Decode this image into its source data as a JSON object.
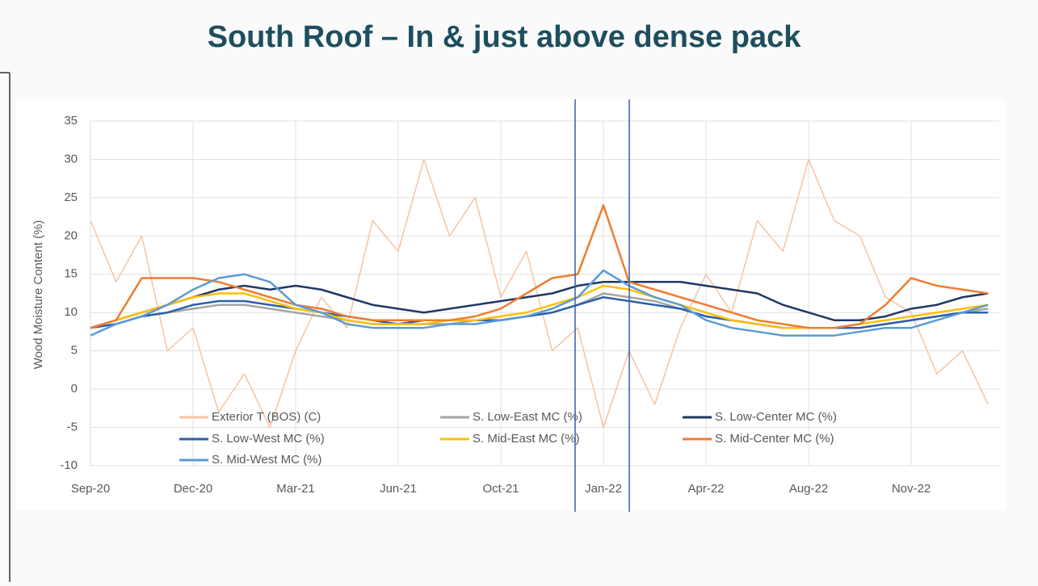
{
  "chart_data": {
    "type": "line",
    "title": "South Roof – In & just above dense pack",
    "y_label": "Wood Moisture Content (%)",
    "categories": [
      "Sep-20",
      null,
      null,
      null,
      "Dec-20",
      null,
      null,
      null,
      "Mar-21",
      null,
      null,
      null,
      "Jun-21",
      null,
      null,
      null,
      "Oct-21",
      null,
      null,
      null,
      "Jan-22",
      null,
      null,
      null,
      "Apr-22",
      null,
      null,
      null,
      "Aug-22",
      null,
      null,
      null,
      "Nov-22",
      null,
      null,
      null
    ],
    "ylim": [
      -10,
      35
    ],
    "yticks": [
      -10,
      -5,
      0,
      5,
      10,
      15,
      20,
      25,
      30,
      35
    ],
    "grid": true,
    "series": [
      {
        "name": "Exterior T (BOS) (C)",
        "color": "#f6c3a3",
        "values": [
          22,
          14,
          20,
          5,
          8,
          -3,
          2,
          -5,
          5,
          12,
          8,
          22,
          18,
          30,
          20,
          25,
          12,
          18,
          5,
          8,
          -5,
          5,
          -2,
          8,
          15,
          10,
          22,
          18,
          30,
          22,
          20,
          12,
          10,
          2,
          5,
          -2
        ]
      },
      {
        "name": "S. Low-East MC (%)",
        "color": "#a5a5a5",
        "values": [
          8,
          8.5,
          9.5,
          10,
          10.5,
          11,
          11,
          10.5,
          10,
          9.5,
          9,
          8.5,
          8.5,
          8.5,
          8.5,
          9,
          9,
          9.5,
          10,
          11,
          12.5,
          12,
          11.5,
          10.5,
          9.5,
          9,
          8.5,
          8,
          8,
          8,
          8,
          8.5,
          9,
          9.5,
          10,
          10.5
        ]
      },
      {
        "name": "S. Low-Center MC (%)",
        "color": "#1f3864",
        "values": [
          8,
          9,
          10,
          11,
          12,
          13,
          13.5,
          13,
          13.5,
          13,
          12,
          11,
          10.5,
          10,
          10.5,
          11,
          11.5,
          12,
          12.5,
          13.5,
          14,
          14,
          14,
          14,
          13.5,
          13,
          12.5,
          11,
          10,
          9,
          9,
          9.5,
          10.5,
          11,
          12,
          12.5
        ]
      },
      {
        "name": "S. Low-West MC (%)",
        "color": "#2e5fa8",
        "values": [
          8,
          8.5,
          9.5,
          10,
          11,
          11.5,
          11.5,
          11,
          10.5,
          10,
          9.5,
          9,
          8.5,
          9,
          9,
          9,
          9,
          9.5,
          10,
          11,
          12,
          11.5,
          11,
          10.5,
          9.5,
          9,
          8.5,
          8,
          8,
          8,
          8,
          8.5,
          9,
          9.5,
          10,
          10
        ]
      },
      {
        "name": "S. Mid-East MC (%)",
        "color": "#ffc000",
        "values": [
          8,
          9,
          10,
          11,
          12,
          12.5,
          12.5,
          11.5,
          10.5,
          10,
          9,
          8.5,
          8.5,
          8.5,
          9,
          9,
          9.5,
          10,
          11,
          12,
          13.5,
          13,
          12,
          11,
          10,
          9,
          8.5,
          8,
          8,
          8,
          8.5,
          9,
          9.5,
          10,
          10.5,
          11
        ]
      },
      {
        "name": "S. Mid-Center MC (%)",
        "color": "#ed7d31",
        "values": [
          8,
          9,
          14.5,
          14.5,
          14.5,
          14,
          13,
          12,
          11,
          10.5,
          9.5,
          9,
          9,
          9,
          9,
          9.5,
          10.5,
          12.5,
          14.5,
          15,
          24,
          14,
          13,
          12,
          11,
          10,
          9,
          8.5,
          8,
          8,
          8.5,
          11,
          14.5,
          13.5,
          13,
          12.5
        ]
      },
      {
        "name": "S. Mid-West MC (%)",
        "color": "#5b9bd5",
        "values": [
          7,
          8.5,
          9.5,
          11,
          13,
          14.5,
          15,
          14,
          11,
          10,
          8.5,
          8,
          8,
          8,
          8.5,
          8.5,
          9,
          9.5,
          10.5,
          12,
          15.5,
          13.5,
          12,
          11,
          9,
          8,
          7.5,
          7,
          7,
          7,
          7.5,
          8,
          8,
          9,
          10,
          11
        ]
      }
    ]
  }
}
